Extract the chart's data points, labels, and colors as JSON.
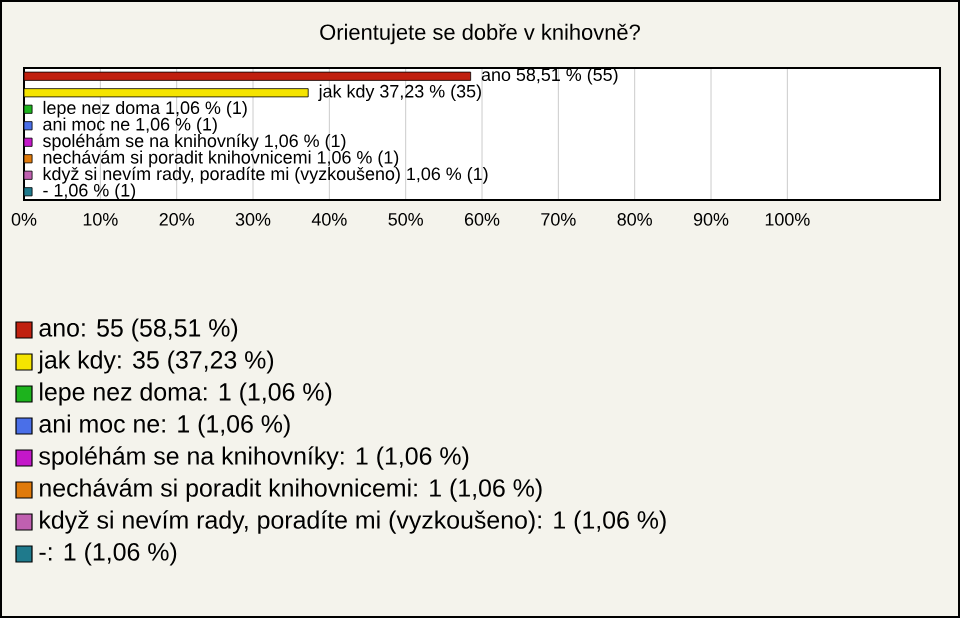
{
  "chart_data": {
    "type": "bar",
    "orientation": "horizontal",
    "title": "Orientujete se dobře v knihovně?",
    "categories": [
      null,
      null,
      null,
      null,
      null,
      null,
      null,
      null
    ],
    "values": [
      58.51,
      37.23,
      1.06,
      1.06,
      1.06,
      1.06,
      1.06,
      1.06
    ],
    "colors": [
      "#c0200f",
      "#f5e400",
      "#1db31d",
      "#4a6fe8",
      "#c417c9",
      "#e07a0a",
      "#c060b0",
      "#1f7a8c"
    ],
    "value_labels": [
      "ano 58,51 % (55)",
      "jak kdy 37,23 % (35)",
      "lepe nez doma 1,06 % (1)",
      "ani moc ne 1,06 % (1)",
      "spoléhám se na knihovníky 1,06 % (1)",
      "nechávám si poradit knihovnicemi 1,06 % (1)",
      "když si nevím rady, poradíte mi (vyzkoušeno) 1,06 % (1)",
      "- 1,06 % (1)"
    ],
    "xlim": [
      0,
      120
    ],
    "xticks": [
      {
        "value": 0,
        "label": "0%"
      },
      {
        "value": 10,
        "label": "10%"
      },
      {
        "value": 20,
        "label": "20%"
      },
      {
        "value": 30,
        "label": "30%"
      },
      {
        "value": 40,
        "label": "40%"
      },
      {
        "value": 50,
        "label": "50%"
      },
      {
        "value": 60,
        "label": "60%"
      },
      {
        "value": 70,
        "label": "70%"
      },
      {
        "value": 80,
        "label": "80%"
      },
      {
        "value": 90,
        "label": "90%"
      },
      {
        "value": 100,
        "label": "100%"
      }
    ],
    "grid": "x",
    "tick_labels": "x",
    "annotations": [
      "ano: 55 (58,51 %)",
      "jak kdy: 35 (37,23 %)",
      "lepe nez doma: 1 (1,06 %)",
      "ani moc ne: 1 (1,06 %)",
      "spoléhám se na knihovníky: 1 (1,06 %)",
      "nechávám si poradit knihovnicemi: 1 (1,06 %)",
      "když si nevím rady, poradíte mi (vyzkoušeno): 1 (1,06 %)",
      "-: 1 (1,06 %)"
    ]
  }
}
